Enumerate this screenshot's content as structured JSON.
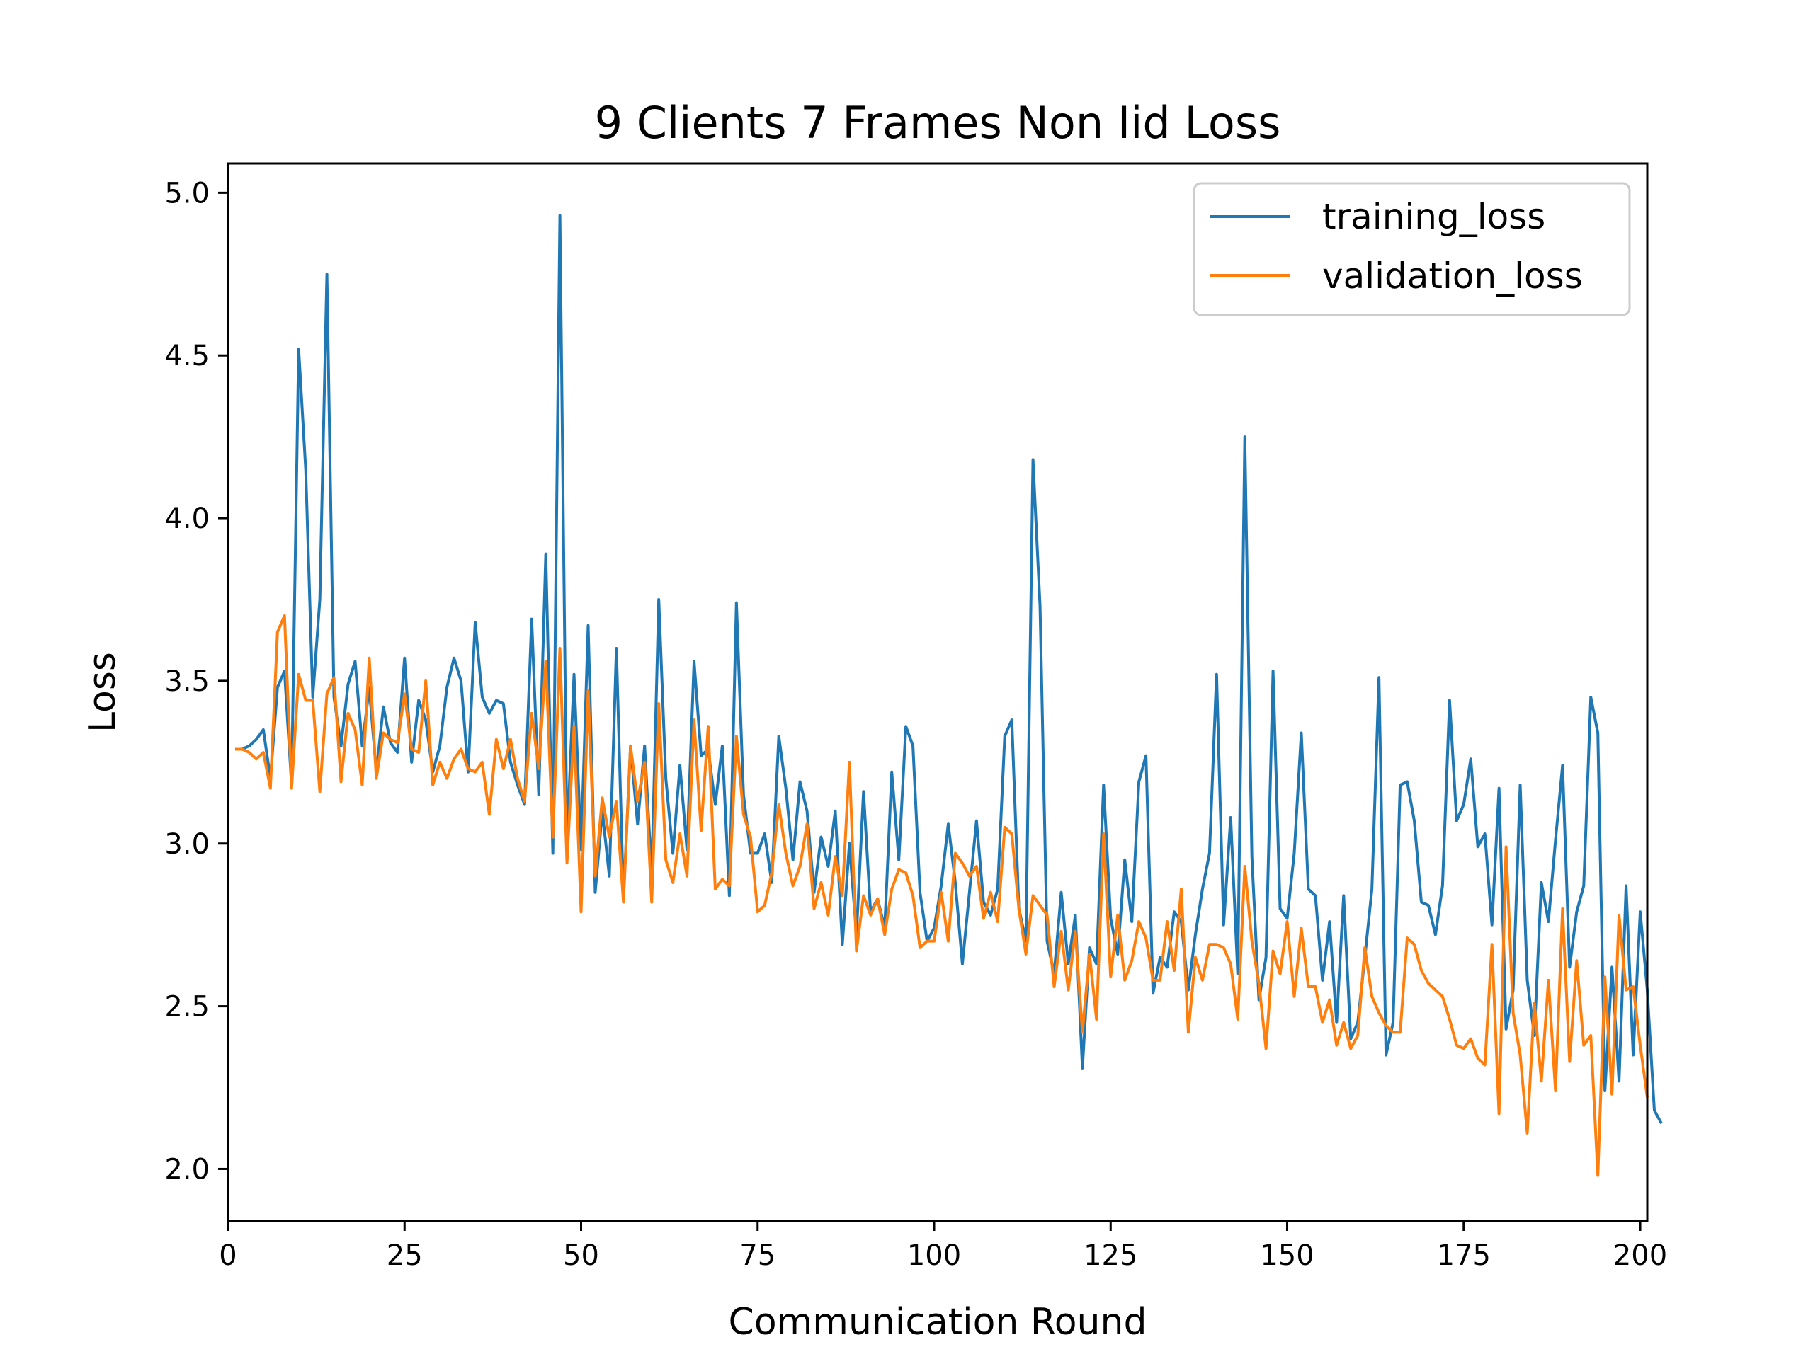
{
  "chart_data": {
    "type": "line",
    "title": "9 Clients 7 Frames Non Iid Loss",
    "xlabel": "Communication Round",
    "ylabel": "Loss",
    "xlim": [
      0,
      201
    ],
    "ylim": [
      1.84,
      5.09
    ],
    "xticks": [
      0,
      25,
      50,
      75,
      100,
      125,
      150,
      175,
      200
    ],
    "yticks": [
      2.0,
      2.5,
      3.0,
      3.5,
      4.0,
      4.5,
      5.0
    ],
    "ytick_labels": [
      "2.0",
      "2.5",
      "3.0",
      "3.5",
      "4.0",
      "4.5",
      "5.0"
    ],
    "grid": false,
    "legend_position": "top-right",
    "colors": {
      "training_loss": "#1f77b4",
      "validation_loss": "#ff7f0e"
    },
    "series": [
      {
        "name": "training_loss",
        "values": [
          3.29,
          3.29,
          3.3,
          3.32,
          3.35,
          3.2,
          3.48,
          3.53,
          3.18,
          4.52,
          4.15,
          3.45,
          3.75,
          4.75,
          3.45,
          3.3,
          3.49,
          3.56,
          3.3,
          3.48,
          3.22,
          3.42,
          3.31,
          3.28,
          3.57,
          3.25,
          3.44,
          3.38,
          3.22,
          3.3,
          3.48,
          3.57,
          3.5,
          3.22,
          3.68,
          3.45,
          3.4,
          3.44,
          3.43,
          3.25,
          3.18,
          3.12,
          3.69,
          3.15,
          3.89,
          2.97,
          4.93,
          3.0,
          3.52,
          2.98,
          3.67,
          2.85,
          3.1,
          2.9,
          3.6,
          2.83,
          3.3,
          3.06,
          3.3,
          2.9,
          3.75,
          3.2,
          2.97,
          3.24,
          2.98,
          3.56,
          3.27,
          3.29,
          3.12,
          3.3,
          2.84,
          3.74,
          3.15,
          2.97,
          2.97,
          3.03,
          2.88,
          3.33,
          3.17,
          2.95,
          3.19,
          3.1,
          2.85,
          3.02,
          2.93,
          3.1,
          2.69,
          3.0,
          2.72,
          3.16,
          2.79,
          2.83,
          2.74,
          3.22,
          2.95,
          3.36,
          3.3,
          2.85,
          2.7,
          2.74,
          2.87,
          3.06,
          2.88,
          2.63,
          2.85,
          3.07,
          2.82,
          2.78,
          2.86,
          3.33,
          3.38,
          2.8,
          2.7,
          4.18,
          3.73,
          2.7,
          2.6,
          2.85,
          2.63,
          2.78,
          2.31,
          2.68,
          2.63,
          3.18,
          2.77,
          2.66,
          2.95,
          2.76,
          3.19,
          3.27,
          2.54,
          2.65,
          2.62,
          2.79,
          2.76,
          2.55,
          2.72,
          2.86,
          2.97,
          3.52,
          2.75,
          3.08,
          2.6,
          4.25,
          2.96,
          2.52,
          2.65,
          3.53,
          2.8,
          2.77,
          2.97,
          3.34,
          2.86,
          2.84,
          2.58,
          2.76,
          2.45,
          2.84,
          2.4,
          2.45,
          2.65,
          2.86,
          3.51,
          2.35,
          2.45,
          3.18,
          3.19,
          3.07,
          2.82,
          2.81,
          2.72,
          2.87,
          3.44,
          3.07,
          3.12,
          3.26,
          2.99,
          3.03,
          2.75,
          3.17,
          2.43,
          2.55,
          3.18,
          2.58,
          2.41,
          2.88,
          2.76,
          3.01,
          3.24,
          2.62,
          2.79,
          2.87,
          3.45,
          3.34,
          2.24,
          2.62,
          2.27,
          2.87,
          2.35,
          2.79,
          2.55,
          2.18,
          2.14
        ]
      },
      {
        "name": "validation_loss",
        "values": [
          3.29,
          3.29,
          3.28,
          3.26,
          3.28,
          3.17,
          3.65,
          3.7,
          3.17,
          3.52,
          3.44,
          3.44,
          3.16,
          3.46,
          3.51,
          3.19,
          3.4,
          3.35,
          3.18,
          3.57,
          3.2,
          3.34,
          3.32,
          3.31,
          3.46,
          3.29,
          3.28,
          3.5,
          3.18,
          3.25,
          3.2,
          3.26,
          3.29,
          3.23,
          3.22,
          3.25,
          3.09,
          3.32,
          3.23,
          3.32,
          3.2,
          3.13,
          3.4,
          3.23,
          3.56,
          3.02,
          3.6,
          2.94,
          3.36,
          2.79,
          3.47,
          2.9,
          3.14,
          3.02,
          3.13,
          2.82,
          3.3,
          3.13,
          3.25,
          2.82,
          3.43,
          2.95,
          2.88,
          3.03,
          2.9,
          3.38,
          3.04,
          3.36,
          2.86,
          2.89,
          2.87,
          3.33,
          3.09,
          3.02,
          2.79,
          2.81,
          2.91,
          3.12,
          2.97,
          2.87,
          2.93,
          3.06,
          2.8,
          2.88,
          2.78,
          2.96,
          2.84,
          3.25,
          2.67,
          2.84,
          2.78,
          2.83,
          2.72,
          2.86,
          2.92,
          2.91,
          2.84,
          2.68,
          2.7,
          2.7,
          2.85,
          2.7,
          2.97,
          2.94,
          2.9,
          2.93,
          2.77,
          2.85,
          2.76,
          3.05,
          3.03,
          2.8,
          2.66,
          2.84,
          2.81,
          2.78,
          2.56,
          2.73,
          2.55,
          2.73,
          2.42,
          2.66,
          2.46,
          3.03,
          2.59,
          2.78,
          2.58,
          2.64,
          2.76,
          2.71,
          2.58,
          2.58,
          2.76,
          2.61,
          2.86,
          2.42,
          2.65,
          2.58,
          2.69,
          2.69,
          2.68,
          2.63,
          2.46,
          2.93,
          2.7,
          2.57,
          2.37,
          2.67,
          2.6,
          2.76,
          2.53,
          2.74,
          2.56,
          2.56,
          2.45,
          2.52,
          2.38,
          2.45,
          2.37,
          2.41,
          2.68,
          2.53,
          2.48,
          2.44,
          2.42,
          2.42,
          2.71,
          2.69,
          2.61,
          2.57,
          2.55,
          2.53,
          2.46,
          2.38,
          2.37,
          2.4,
          2.34,
          2.32,
          2.69,
          2.17,
          2.99,
          2.48,
          2.35,
          2.11,
          2.51,
          2.27,
          2.58,
          2.24,
          2.8,
          2.33,
          2.64,
          2.38,
          2.41,
          1.98,
          2.59,
          2.23,
          2.78,
          2.55,
          2.56,
          2.38,
          2.22
        ]
      }
    ]
  }
}
